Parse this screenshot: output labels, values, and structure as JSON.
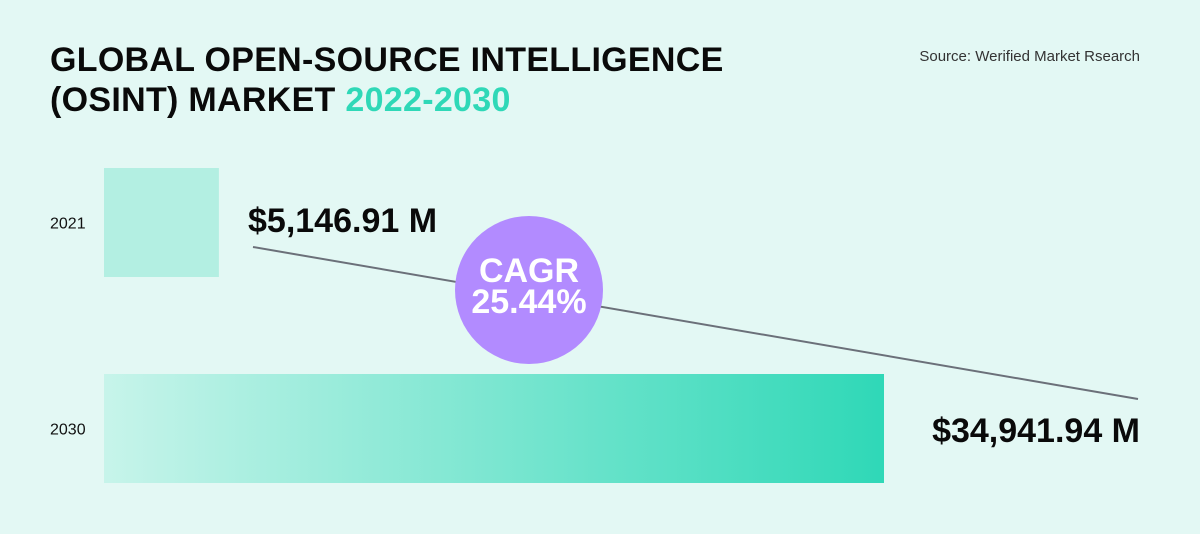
{
  "title": {
    "line1": "GLOBAL OPEN-SOURCE INTELLIGENCE",
    "line2_prefix": "(OSINT) MARKET",
    "line2_accent": "2022-2030"
  },
  "source": "Source: Werified Market Rsearch",
  "cagr": {
    "label": "CAGR",
    "value": "25.44%"
  },
  "colors": {
    "background": "#e3f8f4",
    "bar_2021": "#b3efe2",
    "bar_gradient_start": "#c7f4ea",
    "bar_gradient_end": "#2fd8b7",
    "cagr_circle": "#b28bff",
    "trend_line": "#6b7079",
    "accent": "#2fd8b7"
  },
  "chart_data": {
    "type": "bar",
    "orientation": "horizontal",
    "categories": [
      "2021",
      "2030"
    ],
    "values": [
      5146.91,
      34941.94
    ],
    "value_labels": [
      "$5,146.91 M",
      "$34,941.94 M"
    ],
    "unit": "$ M",
    "xlim": [
      0,
      34941.94
    ]
  }
}
